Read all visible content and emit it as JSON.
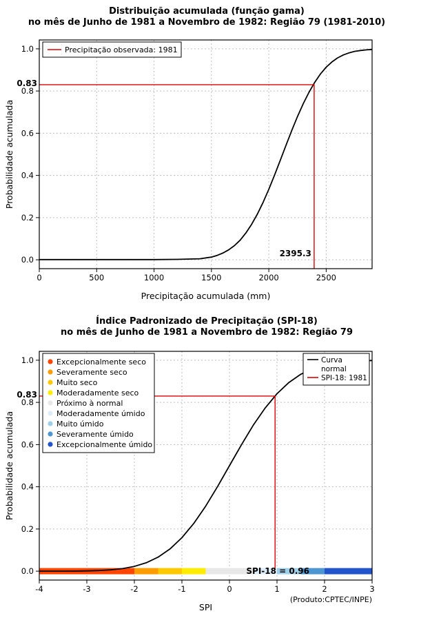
{
  "chart_data": [
    {
      "type": "line",
      "title": "Distribuição acumulada (função gama)",
      "subtitle": "no mês de Junho de 1981 a Novembro de 1982: Região 79 (1981-2010)",
      "xlabel": "Precipitação acumulada (mm)",
      "ylabel": "Probabilidade acumulada",
      "xlim": [
        0,
        2900
      ],
      "ylim": [
        0,
        1
      ],
      "xticks": [
        0,
        500,
        1000,
        1500,
        2000,
        2500
      ],
      "yticks": [
        0,
        0.2,
        0.4,
        0.6,
        0.8,
        1
      ],
      "grid": true,
      "legend": {
        "position": "top-left",
        "items": [
          {
            "label": "Precipitação observada: 1981",
            "color": "#dd0000",
            "type": "line"
          }
        ]
      },
      "series": [
        {
          "name": "Curva gama acumulada",
          "color": "#000000",
          "x": [
            0,
            200,
            400,
            600,
            800,
            1000,
            1200,
            1400,
            1500,
            1550,
            1600,
            1650,
            1700,
            1750,
            1800,
            1850,
            1900,
            1950,
            2000,
            2050,
            2100,
            2150,
            2200,
            2250,
            2300,
            2350,
            2400,
            2450,
            2500,
            2550,
            2600,
            2650,
            2700,
            2750,
            2800,
            2850,
            2900
          ],
          "y": [
            0.001,
            0.001,
            0.001,
            0.001,
            0.001,
            0.001,
            0.002,
            0.005,
            0.013,
            0.021,
            0.032,
            0.047,
            0.067,
            0.093,
            0.127,
            0.168,
            0.216,
            0.272,
            0.334,
            0.401,
            0.472,
            0.543,
            0.613,
            0.679,
            0.74,
            0.794,
            0.841,
            0.881,
            0.913,
            0.938,
            0.957,
            0.971,
            0.981,
            0.988,
            0.992,
            0.995,
            0.997
          ]
        }
      ],
      "marker": {
        "x": 2395.3,
        "y": 0.83,
        "x_label": "2395.3",
        "y_label": "0.83",
        "color": "#dd0000",
        "drop": "bottom"
      }
    },
    {
      "type": "line",
      "title": "Índice Padronizado de Precipitação (SPI-18)",
      "subtitle": "no mês de Junho de 1981 a Novembro de 1982: Região 79",
      "xlabel": "SPI",
      "ylabel": "Probabilidade acumulada",
      "source_note": "(Produto:CPTEC/INPE)",
      "xlim": [
        -4,
        3
      ],
      "ylim": [
        0,
        1
      ],
      "xticks": [
        -4,
        -3,
        -2,
        -1,
        0,
        1,
        2,
        3
      ],
      "yticks": [
        0,
        0.2,
        0.4,
        0.6,
        0.8,
        1
      ],
      "grid": true,
      "cat_legend": {
        "position": "top-left",
        "items": [
          {
            "label": "Excepcionalmente seco",
            "color": "#ff4500",
            "from": -4,
            "to": -2
          },
          {
            "label": "Severamente seco",
            "color": "#ff9c00",
            "from": -2,
            "to": -1.5
          },
          {
            "label": "Muito seco",
            "color": "#ffc800",
            "from": -1.5,
            "to": -1
          },
          {
            "label": "Moderadamente seco",
            "color": "#ffec00",
            "from": -1,
            "to": -0.5
          },
          {
            "label": "Próximo à normal",
            "color": "#e8e8e8",
            "from": -0.5,
            "to": 0.5
          },
          {
            "label": "Moderadamente úmido",
            "color": "#dcedf7",
            "from": 0.5,
            "to": 1
          },
          {
            "label": "Muito úmido",
            "color": "#9fcfe8",
            "from": 1,
            "to": 1.5
          },
          {
            "label": "Severamente úmido",
            "color": "#4e96d1",
            "from": 1.5,
            "to": 2
          },
          {
            "label": "Excepcionalmente úmido",
            "color": "#2255cc",
            "from": 2,
            "to": 3
          }
        ]
      },
      "line_legend": {
        "position": "top-right",
        "items": [
          {
            "label_lines": [
              "Curva",
              "normal"
            ],
            "color": "#000000"
          },
          {
            "label_lines": [
              "SPI-18: 1981"
            ],
            "color": "#dd0000"
          }
        ]
      },
      "series": [
        {
          "name": "Curva normal acumulada",
          "color": "#000000",
          "x": [
            -4,
            -3.75,
            -3.5,
            -3.25,
            -3,
            -2.75,
            -2.5,
            -2.25,
            -2,
            -1.75,
            -1.5,
            -1.25,
            -1,
            -0.75,
            -0.5,
            -0.25,
            0,
            0.25,
            0.5,
            0.75,
            1,
            1.25,
            1.5,
            1.75,
            2,
            2.25,
            2.5,
            2.75,
            3
          ],
          "y": [
            0.0,
            0.0001,
            0.0002,
            0.0006,
            0.0013,
            0.003,
            0.0062,
            0.0122,
            0.0228,
            0.0401,
            0.0668,
            0.1056,
            0.1587,
            0.2266,
            0.3085,
            0.4013,
            0.5,
            0.5987,
            0.6915,
            0.7734,
            0.8413,
            0.8944,
            0.9332,
            0.9599,
            0.9772,
            0.9878,
            0.9938,
            0.997,
            0.9987
          ]
        }
      ],
      "marker": {
        "x": 0.96,
        "y": 0.83,
        "y_label": "0.83",
        "color": "#dd0000",
        "drop": "bar"
      },
      "bar_label": "SPI-18 = 0.96"
    }
  ]
}
